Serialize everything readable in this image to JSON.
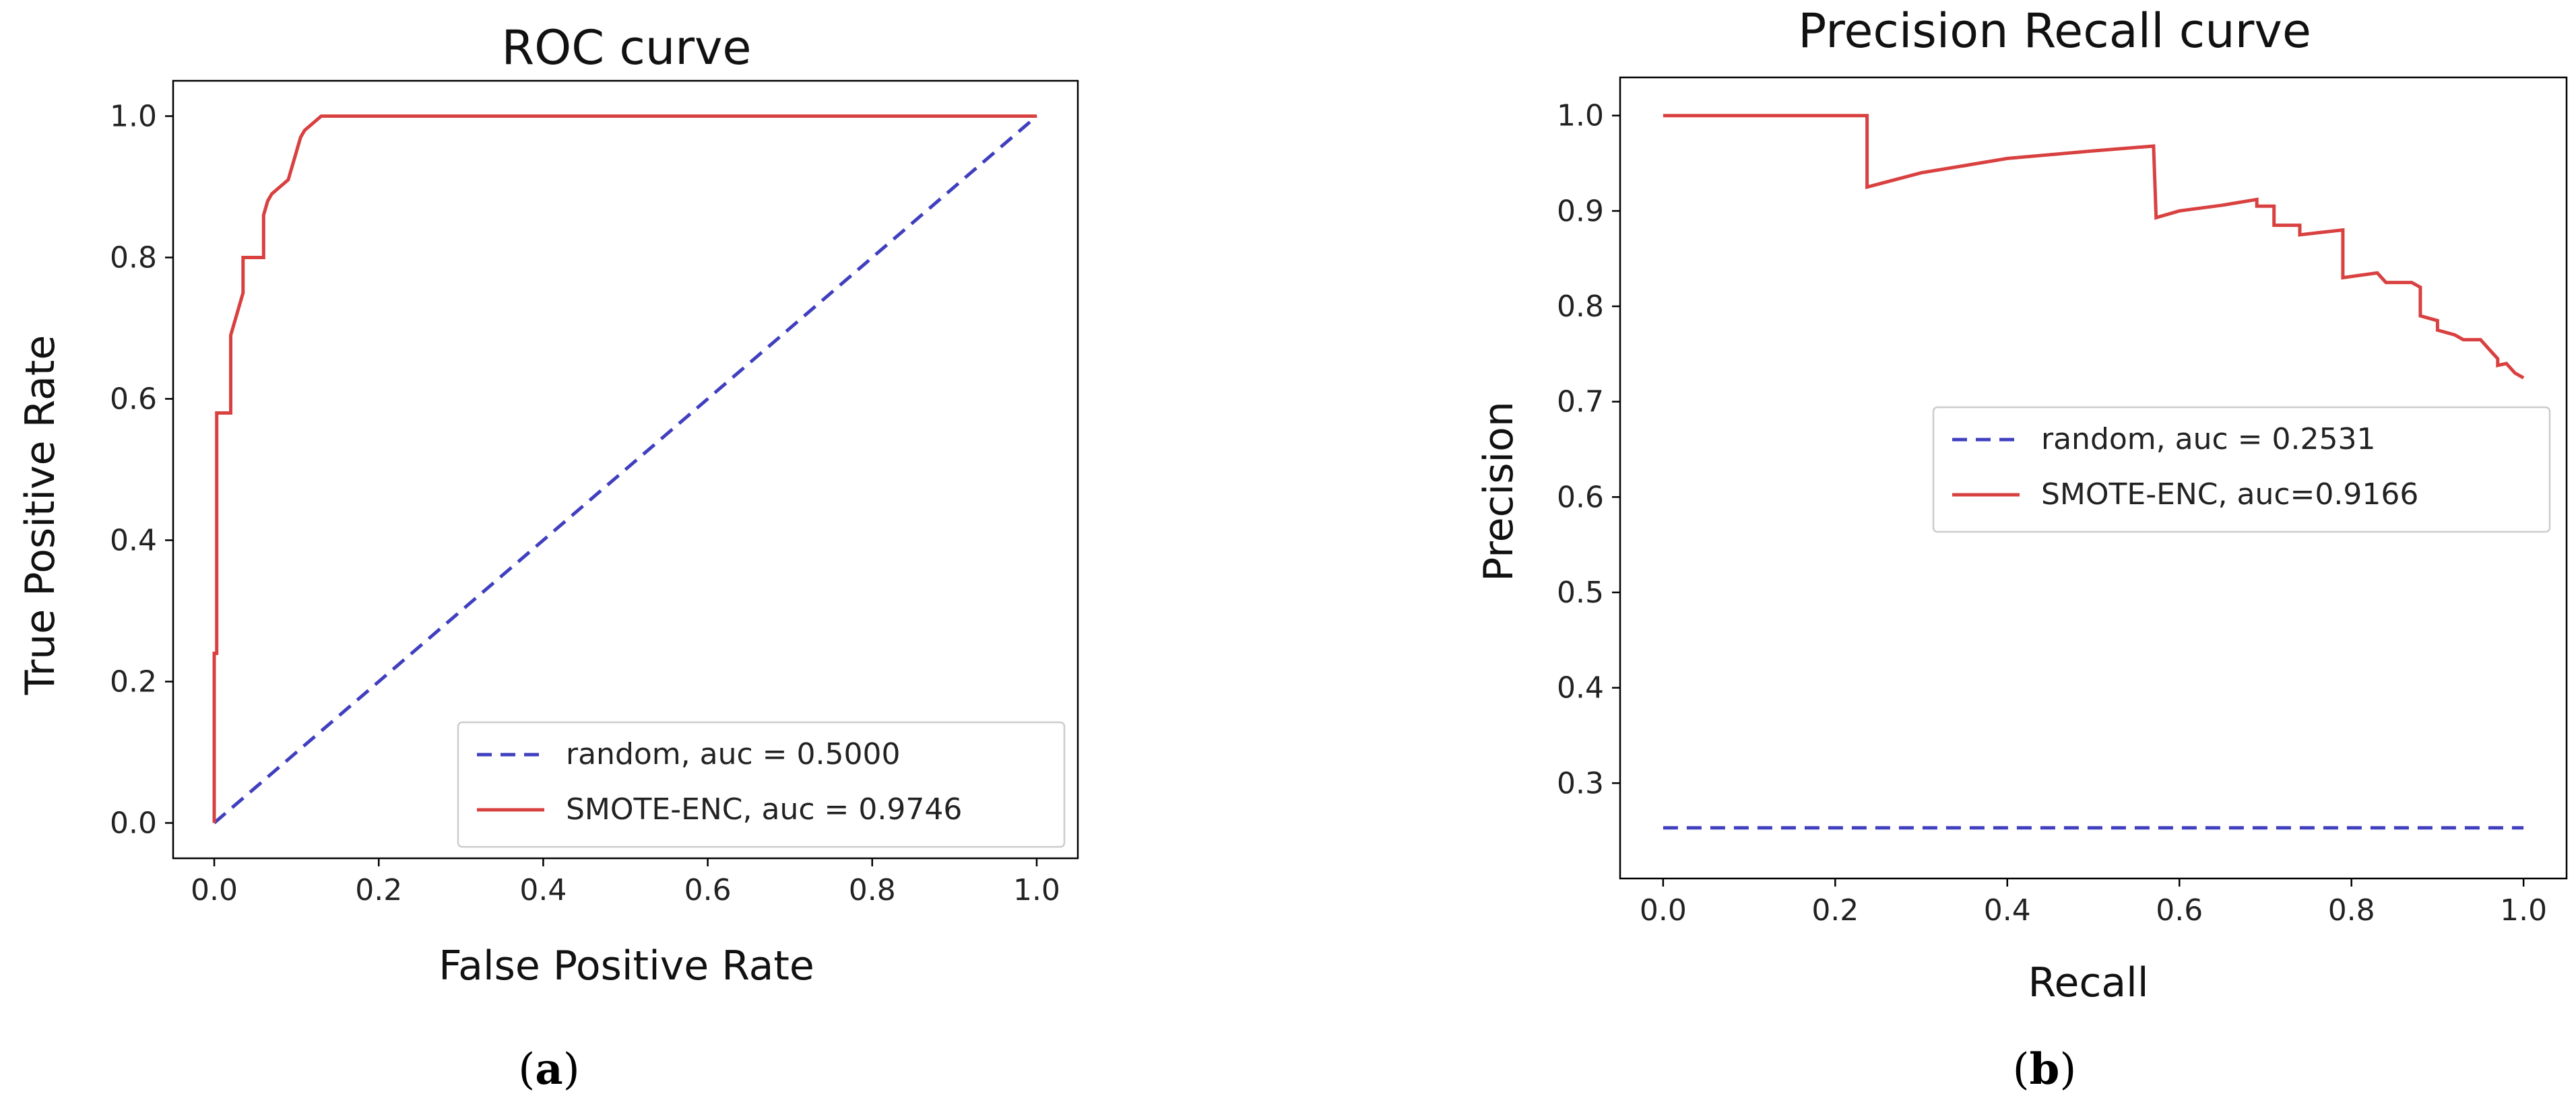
{
  "chart_data": [
    {
      "type": "line",
      "title": "ROC curve",
      "xlabel": "False Positive Rate",
      "ylabel": "True Positive Rate",
      "xlim": [
        -0.05,
        1.05
      ],
      "ylim": [
        -0.05,
        1.05
      ],
      "xticks": [
        "0.0",
        "0.2",
        "0.4",
        "0.6",
        "0.8",
        "1.0"
      ],
      "yticks": [
        "0.0",
        "0.2",
        "0.4",
        "0.6",
        "0.8",
        "1.0"
      ],
      "legend_position": "lower-right",
      "caption": "a",
      "series": [
        {
          "name": "random, auc = 0.5000",
          "color": "#3f3fbf",
          "style": "dashed",
          "x": [
            0,
            1
          ],
          "y": [
            0,
            1
          ]
        },
        {
          "name": "SMOTE-ENC, auc = 0.9746",
          "color": "#d94040",
          "style": "solid",
          "x": [
            0,
            0,
            0.003,
            0.003,
            0.006,
            0.006,
            0.02,
            0.02,
            0.025,
            0.03,
            0.035,
            0.035,
            0.04,
            0.04,
            0.05,
            0.06,
            0.06,
            0.065,
            0.07,
            0.08,
            0.09,
            0.095,
            0.1,
            0.105,
            0.11,
            0.12,
            0.13,
            1.0
          ],
          "y": [
            0,
            0.24,
            0.24,
            0.58,
            0.58,
            0.58,
            0.58,
            0.69,
            0.71,
            0.73,
            0.75,
            0.8,
            0.8,
            0.8,
            0.8,
            0.8,
            0.86,
            0.88,
            0.89,
            0.9,
            0.91,
            0.93,
            0.95,
            0.97,
            0.98,
            0.99,
            1.0,
            1.0
          ]
        }
      ]
    },
    {
      "type": "line",
      "title": "Precision Recall curve",
      "xlabel": "Recall",
      "ylabel": "Precision",
      "xlim": [
        -0.05,
        1.05
      ],
      "ylim": [
        0.2,
        1.04
      ],
      "xticks": [
        "0.0",
        "0.2",
        "0.4",
        "0.6",
        "0.8",
        "1.0"
      ],
      "yticks": [
        "0.3",
        "0.4",
        "0.5",
        "0.6",
        "0.7",
        "0.8",
        "0.9",
        "1.0"
      ],
      "legend_position": "center-right",
      "caption": "b",
      "series": [
        {
          "name": "random, auc = 0.2531",
          "color": "#3f3fbf",
          "style": "dashed",
          "x": [
            0,
            1
          ],
          "y": [
            0.2531,
            0.2531
          ]
        },
        {
          "name": "SMOTE-ENC, auc=0.9166",
          "color": "#d94040",
          "style": "solid",
          "x": [
            0,
            0.237,
            0.237,
            0.3,
            0.4,
            0.5,
            0.57,
            0.573,
            0.6,
            0.65,
            0.69,
            0.69,
            0.71,
            0.71,
            0.74,
            0.74,
            0.76,
            0.79,
            0.79,
            0.83,
            0.84,
            0.84,
            0.87,
            0.88,
            0.88,
            0.9,
            0.9,
            0.92,
            0.93,
            0.95,
            0.96,
            0.97,
            0.97,
            0.98,
            0.99,
            1.0
          ],
          "y": [
            1.0,
            1.0,
            0.925,
            0.94,
            0.955,
            0.963,
            0.968,
            0.893,
            0.9,
            0.906,
            0.912,
            0.905,
            0.905,
            0.885,
            0.885,
            0.875,
            0.877,
            0.88,
            0.83,
            0.835,
            0.825,
            0.825,
            0.825,
            0.82,
            0.79,
            0.785,
            0.775,
            0.77,
            0.765,
            0.765,
            0.755,
            0.745,
            0.738,
            0.74,
            0.73,
            0.725
          ]
        }
      ]
    }
  ]
}
